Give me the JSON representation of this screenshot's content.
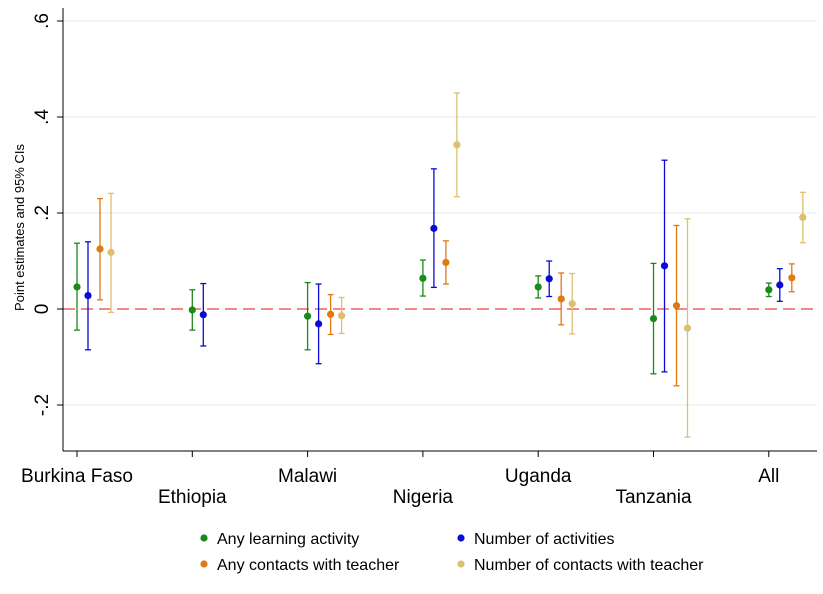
{
  "chart_data": {
    "type": "scatter",
    "ylabel": "Point estimates and 95% CIs",
    "ylim": [
      -0.3,
      0.61
    ],
    "yticks": [
      {
        "value": 0.6,
        "label": ".6"
      },
      {
        "value": 0.4,
        "label": ".4"
      },
      {
        "value": 0.2,
        "label": ".2"
      },
      {
        "value": 0,
        "label": "0"
      },
      {
        "value": -0.2,
        "label": "-.2"
      }
    ],
    "grid": true,
    "reference_line": {
      "y": 0,
      "style": "dashed",
      "color": "#f06060"
    },
    "categories": [
      "Burkina Faso",
      "Ethiopia",
      "Malawi",
      "Nigeria",
      "Uganda",
      "Tanzania",
      "All"
    ],
    "legend_position": "bottom",
    "series": [
      {
        "name": "Any learning activity",
        "color": "#1a8a1a",
        "points": [
          {
            "est": 0.046,
            "lo": -0.044,
            "hi": 0.137
          },
          {
            "est": -0.002,
            "lo": -0.044,
            "hi": 0.04
          },
          {
            "est": -0.015,
            "lo": -0.085,
            "hi": 0.055
          },
          {
            "est": 0.064,
            "lo": 0.027,
            "hi": 0.102
          },
          {
            "est": 0.046,
            "lo": 0.023,
            "hi": 0.069
          },
          {
            "est": -0.02,
            "lo": -0.135,
            "hi": 0.095
          },
          {
            "est": 0.04,
            "lo": 0.026,
            "hi": 0.054
          }
        ]
      },
      {
        "name": "Number of activities",
        "color": "#0a0ad8",
        "points": [
          {
            "est": 0.028,
            "lo": -0.085,
            "hi": 0.14
          },
          {
            "est": -0.012,
            "lo": -0.077,
            "hi": 0.053
          },
          {
            "est": -0.031,
            "lo": -0.114,
            "hi": 0.052
          },
          {
            "est": 0.168,
            "lo": 0.045,
            "hi": 0.292
          },
          {
            "est": 0.063,
            "lo": 0.026,
            "hi": 0.1
          },
          {
            "est": 0.09,
            "lo": -0.131,
            "hi": 0.31
          },
          {
            "est": 0.05,
            "lo": 0.016,
            "hi": 0.084
          }
        ]
      },
      {
        "name": "Any contacts with teacher",
        "color": "#e07a10",
        "points": [
          {
            "est": 0.125,
            "lo": 0.019,
            "hi": 0.23
          },
          null,
          {
            "est": -0.011,
            "lo": -0.053,
            "hi": 0.03
          },
          {
            "est": 0.097,
            "lo": 0.052,
            "hi": 0.142
          },
          {
            "est": 0.021,
            "lo": -0.033,
            "hi": 0.075
          },
          {
            "est": 0.007,
            "lo": -0.16,
            "hi": 0.174
          },
          {
            "est": 0.065,
            "lo": 0.036,
            "hi": 0.094
          }
        ]
      },
      {
        "name": "Number of contacts with teacher",
        "color": "#dcc070",
        "points": [
          {
            "est": 0.118,
            "lo": -0.007,
            "hi": 0.241
          },
          null,
          {
            "est": -0.014,
            "lo": -0.051,
            "hi": 0.024
          },
          {
            "est": 0.342,
            "lo": 0.234,
            "hi": 0.45
          },
          {
            "est": 0.011,
            "lo": -0.052,
            "hi": 0.074
          },
          {
            "est": -0.04,
            "lo": -0.267,
            "hi": 0.188
          },
          {
            "est": 0.191,
            "lo": 0.138,
            "hi": 0.243
          }
        ]
      }
    ]
  }
}
